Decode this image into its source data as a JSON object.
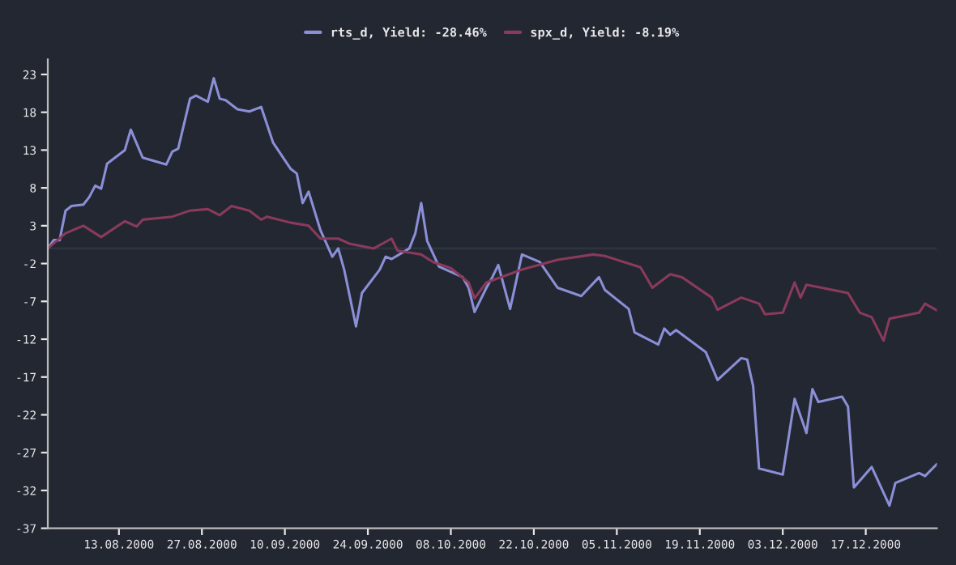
{
  "chart_data": {
    "type": "line",
    "legend": "top",
    "grid": false,
    "line_style": "solid",
    "marker": "none",
    "xlim": [
      "2000-08-01",
      "2000-12-29"
    ],
    "xticks": [
      {
        "value": "2000-08-13",
        "label": "13.08.2000"
      },
      {
        "value": "2000-08-27",
        "label": "27.08.2000"
      },
      {
        "value": "2000-09-10",
        "label": "10.09.2000"
      },
      {
        "value": "2000-09-24",
        "label": "24.09.2000"
      },
      {
        "value": "2000-10-08",
        "label": "08.10.2000"
      },
      {
        "value": "2000-10-22",
        "label": "22.10.2000"
      },
      {
        "value": "2000-11-05",
        "label": "05.11.2000"
      },
      {
        "value": "2000-11-19",
        "label": "19.11.2000"
      },
      {
        "value": "2000-12-03",
        "label": "03.12.2000"
      },
      {
        "value": "2000-12-17",
        "label": "17.12.2000"
      }
    ],
    "ylim": [
      -37,
      25
    ],
    "yticks": [
      -37,
      -32,
      -27,
      -22,
      -17,
      -12,
      -7,
      -2,
      3,
      8,
      13,
      18,
      23
    ],
    "ref_lines": [
      {
        "axis": "y",
        "value": 0,
        "color": "#2e3340"
      }
    ],
    "series": [
      {
        "name": "rts_d, Yield: -28.46%",
        "color": "#8b8fd6",
        "x": [
          "2000-08-01",
          "2000-08-02",
          "2000-08-03",
          "2000-08-04",
          "2000-08-05",
          "2000-08-07",
          "2000-08-08",
          "2000-08-09",
          "2000-08-10",
          "2000-08-11",
          "2000-08-14",
          "2000-08-15",
          "2000-08-17",
          "2000-08-21",
          "2000-08-22",
          "2000-08-23",
          "2000-08-25",
          "2000-08-26",
          "2000-08-28",
          "2000-08-29",
          "2000-08-30",
          "2000-08-31",
          "2000-09-02",
          "2000-09-04",
          "2000-09-06",
          "2000-09-08",
          "2000-09-11",
          "2000-09-12",
          "2000-09-13",
          "2000-09-14",
          "2000-09-16",
          "2000-09-18",
          "2000-09-19",
          "2000-09-20",
          "2000-09-22",
          "2000-09-23",
          "2000-09-26",
          "2000-09-27",
          "2000-09-28",
          "2000-10-01",
          "2000-10-02",
          "2000-10-03",
          "2000-10-04",
          "2000-10-06",
          "2000-10-10",
          "2000-10-11",
          "2000-10-12",
          "2000-10-14",
          "2000-10-15",
          "2000-10-16",
          "2000-10-18",
          "2000-10-20",
          "2000-10-23",
          "2000-10-26",
          "2000-10-30",
          "2000-11-02",
          "2000-11-03",
          "2000-11-07",
          "2000-11-08",
          "2000-11-12",
          "2000-11-13",
          "2000-11-14",
          "2000-11-15",
          "2000-11-20",
          "2000-11-22",
          "2000-11-26",
          "2000-11-27",
          "2000-11-28",
          "2000-11-29",
          "2000-12-03",
          "2000-12-05",
          "2000-12-07",
          "2000-12-08",
          "2000-12-09",
          "2000-12-13",
          "2000-12-14",
          "2000-12-15",
          "2000-12-18",
          "2000-12-21",
          "2000-12-22",
          "2000-12-26",
          "2000-12-27",
          "2000-12-29"
        ],
        "values": [
          0,
          1.1,
          1.1,
          5,
          5.6,
          5.8,
          6.8,
          8.3,
          7.9,
          11.2,
          13,
          15.7,
          12,
          11.1,
          12.8,
          13.2,
          19.8,
          20.2,
          19.4,
          22.5,
          19.8,
          19.6,
          18.4,
          18.1,
          18.7,
          14,
          10.5,
          9.9,
          6,
          7.5,
          2.4,
          -1.1,
          0,
          -2.8,
          -10.3,
          -5.9,
          -2.8,
          -1.1,
          -1.4,
          0,
          2,
          6,
          1,
          -2.4,
          -3.8,
          -5.2,
          -8.4,
          -5.2,
          -3.8,
          -2.2,
          -8,
          -0.8,
          -1.8,
          -5.2,
          -6.3,
          -3.8,
          -5.5,
          -8,
          -11.1,
          -12.7,
          -10.6,
          -11.4,
          -10.8,
          -13.7,
          -17.4,
          -14.5,
          -14.7,
          -18.2,
          -29.1,
          -29.9,
          -19.9,
          -24.4,
          -18.6,
          -20.3,
          -19.6,
          -20.9,
          -31.6,
          -28.9,
          -34,
          -31,
          -29.7,
          -30.1,
          -28.5
        ]
      },
      {
        "name": "spx_d, Yield: -8.19%",
        "color": "#8a3a5a",
        "x": [
          "2000-08-01",
          "2000-08-04",
          "2000-08-07",
          "2000-08-10",
          "2000-08-14",
          "2000-08-16",
          "2000-08-17",
          "2000-08-22",
          "2000-08-25",
          "2000-08-28",
          "2000-08-30",
          "2000-09-01",
          "2000-09-04",
          "2000-09-06",
          "2000-09-07",
          "2000-09-11",
          "2000-09-14",
          "2000-09-16",
          "2000-09-19",
          "2000-09-21",
          "2000-09-25",
          "2000-09-28",
          "2000-09-29",
          "2000-10-03",
          "2000-10-05",
          "2000-10-08",
          "2000-10-11",
          "2000-10-12",
          "2000-10-14",
          "2000-10-20",
          "2000-10-26",
          "2000-11-01",
          "2000-11-03",
          "2000-11-09",
          "2000-11-11",
          "2000-11-14",
          "2000-11-16",
          "2000-11-21",
          "2000-11-22",
          "2000-11-26",
          "2000-11-29",
          "2000-11-30",
          "2000-12-03",
          "2000-12-05",
          "2000-12-06",
          "2000-12-07",
          "2000-12-14",
          "2000-12-16",
          "2000-12-18",
          "2000-12-20",
          "2000-12-21",
          "2000-12-26",
          "2000-12-27",
          "2000-12-29"
        ],
        "values": [
          0,
          2,
          3,
          1.5,
          3.6,
          2.9,
          3.8,
          4.2,
          5,
          5.2,
          4.4,
          5.6,
          5,
          3.8,
          4.2,
          3.4,
          3,
          1.3,
          1.3,
          0.6,
          0,
          1.3,
          -0.3,
          -0.8,
          -1.8,
          -2.6,
          -4.5,
          -6.6,
          -4.5,
          -2.8,
          -1.5,
          -0.8,
          -1,
          -2.5,
          -5.2,
          -3.4,
          -3.8,
          -6.5,
          -8.1,
          -6.5,
          -7.3,
          -8.7,
          -8.5,
          -4.5,
          -6.5,
          -4.8,
          -5.9,
          -8.5,
          -9.1,
          -12.2,
          -9.3,
          -8.5,
          -7.3,
          -8.2
        ]
      }
    ]
  }
}
